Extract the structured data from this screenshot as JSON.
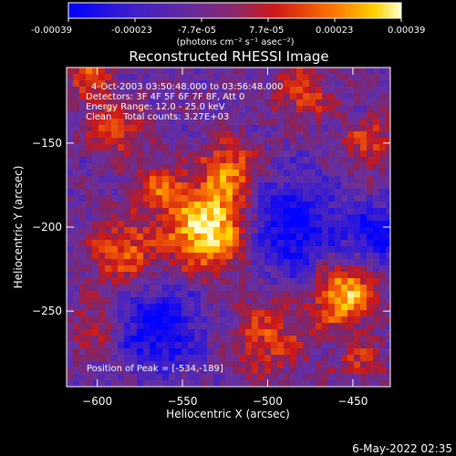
{
  "colorbar": {
    "tick_labels": [
      "-0.00039",
      "-0.00023",
      "-7.7e-05",
      "7.7e-05",
      "0.00023",
      "0.00039"
    ],
    "units_label": "(photons cm⁻² s⁻¹ asec⁻²)"
  },
  "title": "Reconstructed RHESSI Image",
  "annotations": {
    "time_range": "4-Oct-2003 03:50:48.000 to 03:56:48.000",
    "detectors": "Detectors: 3F 4F 5F 6F 7F 8F, Att 0",
    "energy_range": "Energy Range: 12.0 - 25.0 keV",
    "algorithm_counts": "Clean    Total counts: 3.27E+03",
    "peak_position": "Position of Peak = [-534,-189]"
  },
  "footer_timestamp": "6-May-2022 02:35",
  "chart_data": {
    "type": "heatmap",
    "title": "Reconstructed RHESSI Image",
    "xlabel": "Heliocentric X (arcsec)",
    "ylabel": "Heliocentric Y (arcsec)",
    "x_ticks": [
      -600,
      -550,
      -500,
      -450
    ],
    "y_ticks": [
      -150,
      -200,
      -250
    ],
    "xlim": [
      -618,
      -428
    ],
    "ylim": [
      -295,
      -105
    ],
    "colorbar_range": [
      -0.00039,
      0.00039
    ],
    "peak": {
      "x": -534,
      "y": -189
    },
    "hot_spots": [
      {
        "x": -534,
        "y": -200,
        "sigma": 18,
        "amp": 1.0
      },
      {
        "x": -522,
        "y": -165,
        "sigma": 12,
        "amp": 0.55
      },
      {
        "x": -455,
        "y": -240,
        "sigma": 13,
        "amp": 0.85
      },
      {
        "x": -565,
        "y": -175,
        "sigma": 10,
        "amp": 0.45
      },
      {
        "x": -585,
        "y": -215,
        "sigma": 14,
        "amp": 0.55
      },
      {
        "x": -590,
        "y": -140,
        "sigma": 12,
        "amp": 0.5
      },
      {
        "x": -605,
        "y": -110,
        "sigma": 10,
        "amp": 0.45
      },
      {
        "x": -500,
        "y": -265,
        "sigma": 16,
        "amp": 0.45
      },
      {
        "x": -440,
        "y": -150,
        "sigma": 12,
        "amp": 0.4
      },
      {
        "x": -600,
        "y": -260,
        "sigma": 12,
        "amp": 0.35
      },
      {
        "x": -480,
        "y": -120,
        "sigma": 12,
        "amp": 0.45
      },
      {
        "x": -445,
        "y": -280,
        "sigma": 10,
        "amp": 0.35
      }
    ],
    "cold_spots": [
      {
        "x": -565,
        "y": -260,
        "sigma": 18,
        "amp": -0.6
      },
      {
        "x": -488,
        "y": -200,
        "sigma": 20,
        "amp": -0.65
      },
      {
        "x": -435,
        "y": -205,
        "sigma": 12,
        "amp": -0.55
      }
    ]
  },
  "colors": {
    "background": "#000000",
    "foreground": "#ffffff",
    "colormap_stops": [
      "#0000ff",
      "#3a1ec8",
      "#6a3ab0",
      "#8a2a6a",
      "#c41e1e",
      "#ff6400",
      "#ffc800",
      "#ffffc8"
    ]
  }
}
